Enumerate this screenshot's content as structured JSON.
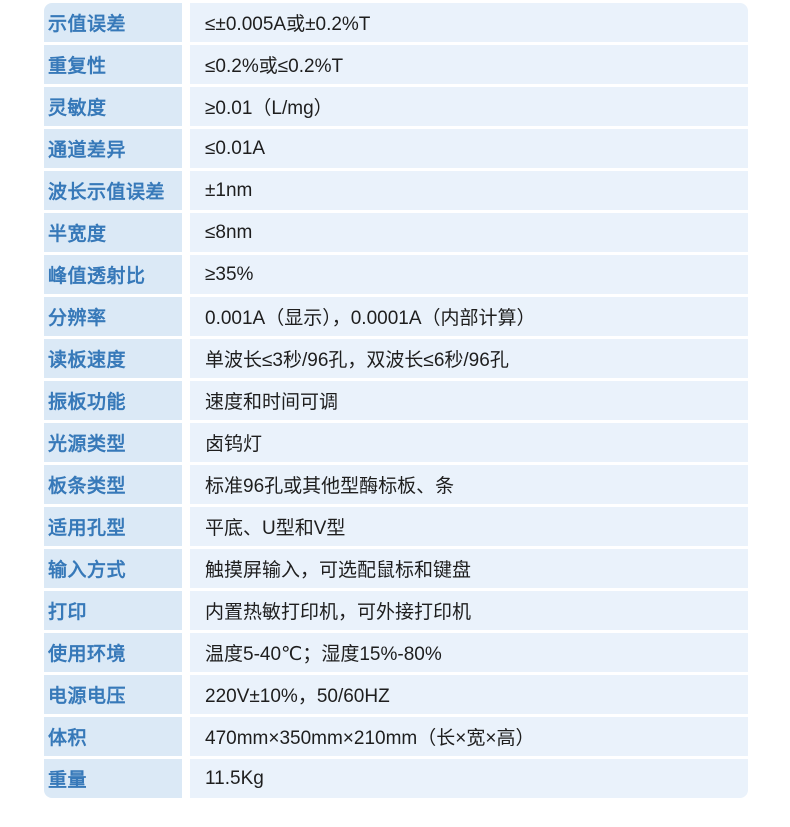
{
  "colors": {
    "page_bg": "#ffffff",
    "label_bg": "#dbe9f6",
    "value_bg": "#eaf2fb",
    "label_text": "#3779b9",
    "value_text": "#1e1e1e"
  },
  "table": {
    "rows": [
      {
        "label": "示值误差",
        "value": "≤±0.005A或±0.2%T"
      },
      {
        "label": "重复性",
        "value": "≤0.2%或≤0.2%T"
      },
      {
        "label": "灵敏度",
        "value": "≥0.01（L/mg）"
      },
      {
        "label": "通道差异",
        "value": "≤0.01A"
      },
      {
        "label": "波长示值误差",
        "value": "±1nm"
      },
      {
        "label": "半宽度",
        "value": "≤8nm"
      },
      {
        "label": "峰值透射比",
        "value": "≥35%"
      },
      {
        "label": "分辨率",
        "value": "0.001A（显示），0.0001A（内部计算）"
      },
      {
        "label": "读板速度",
        "value": "单波长≤3秒/96孔，双波长≤6秒/96孔"
      },
      {
        "label": "振板功能",
        "value": "速度和时间可调"
      },
      {
        "label": "光源类型",
        "value": "卤钨灯"
      },
      {
        "label": "板条类型",
        "value": "标准96孔或其他型酶标板、条"
      },
      {
        "label": "适用孔型",
        "value": "平底、U型和V型"
      },
      {
        "label": "输入方式",
        "value": "触摸屏输入，可选配鼠标和键盘"
      },
      {
        "label": "打印",
        "value": "内置热敏打印机，可外接打印机"
      },
      {
        "label": "使用环境",
        "value": "温度5-40℃；湿度15%-80%"
      },
      {
        "label": "电源电压",
        "value": "220V±10%，50/60HZ"
      },
      {
        "label": "体积",
        "value": "470mm×350mm×210mm（长×宽×高）"
      },
      {
        "label": "重量",
        "value": "11.5Kg"
      }
    ]
  }
}
